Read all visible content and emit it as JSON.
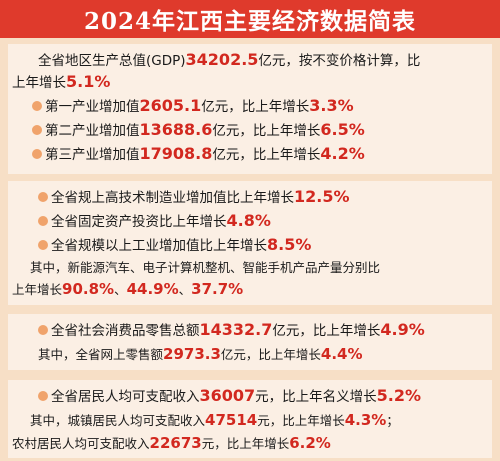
{
  "title": "2024年江西主要经济数据简表",
  "block1": {
    "gdp_pre": "全省地区生产总值(GDP)",
    "gdp_val": "34202.5",
    "gdp_mid": "亿元，按不变价格计算，比",
    "gdp_cont": "上年增长",
    "gdp_growth": "5.1%",
    "items": [
      {
        "pre": "第一产业增加值",
        "val": "2605.1",
        "mid": "亿元，比上年增长",
        "growth": "3.3%"
      },
      {
        "pre": "第二产业增加值",
        "val": "13688.6",
        "mid": "亿元，比上年增长",
        "growth": "6.5%"
      },
      {
        "pre": "第三产业增加值",
        "val": "17908.8",
        "mid": "亿元，比上年增长",
        "growth": "4.2%"
      }
    ]
  },
  "block2": {
    "items": [
      {
        "pre": "全省规上高技术制造业增加值比上年增长",
        "growth": "12.5%"
      },
      {
        "pre": "全省固定资产投资比上年增长",
        "growth": "4.8%"
      },
      {
        "pre": "全省规模以上工业增加值比上年增长",
        "growth": "8.5%"
      }
    ],
    "note1": "其中，新能源汽车、电子计算机整机、智能手机产品产量分别比",
    "note2_pre": "上年增长",
    "v1": "90.8%",
    "sep1": "、",
    "v2": "44.9%",
    "sep2": "、",
    "v3": "37.7%"
  },
  "block3": {
    "pre": "全省社会消费品零售总额",
    "val": "14332.7",
    "mid": "亿元，比上年增长",
    "growth": "4.9%",
    "note_pre": "其中，全省网上零售额",
    "note_val": "2973.3",
    "note_mid": "亿元，比上年增长",
    "note_growth": "4.4%"
  },
  "block4": {
    "pre": "全省居民人均可支配收入",
    "val": "36007",
    "mid": "元，比上年名义增长",
    "growth": "5.2%",
    "urban_pre": "其中，城镇居民人均可支配收入",
    "urban_val": "47514",
    "urban_mid": "元，比上年增长",
    "urban_growth": "4.3%",
    "urban_end": "；",
    "rural_pre": "农村居民人均可支配收入",
    "rural_val": "22673",
    "rural_mid": "元，比上年增长",
    "rural_growth": "6.2%"
  }
}
